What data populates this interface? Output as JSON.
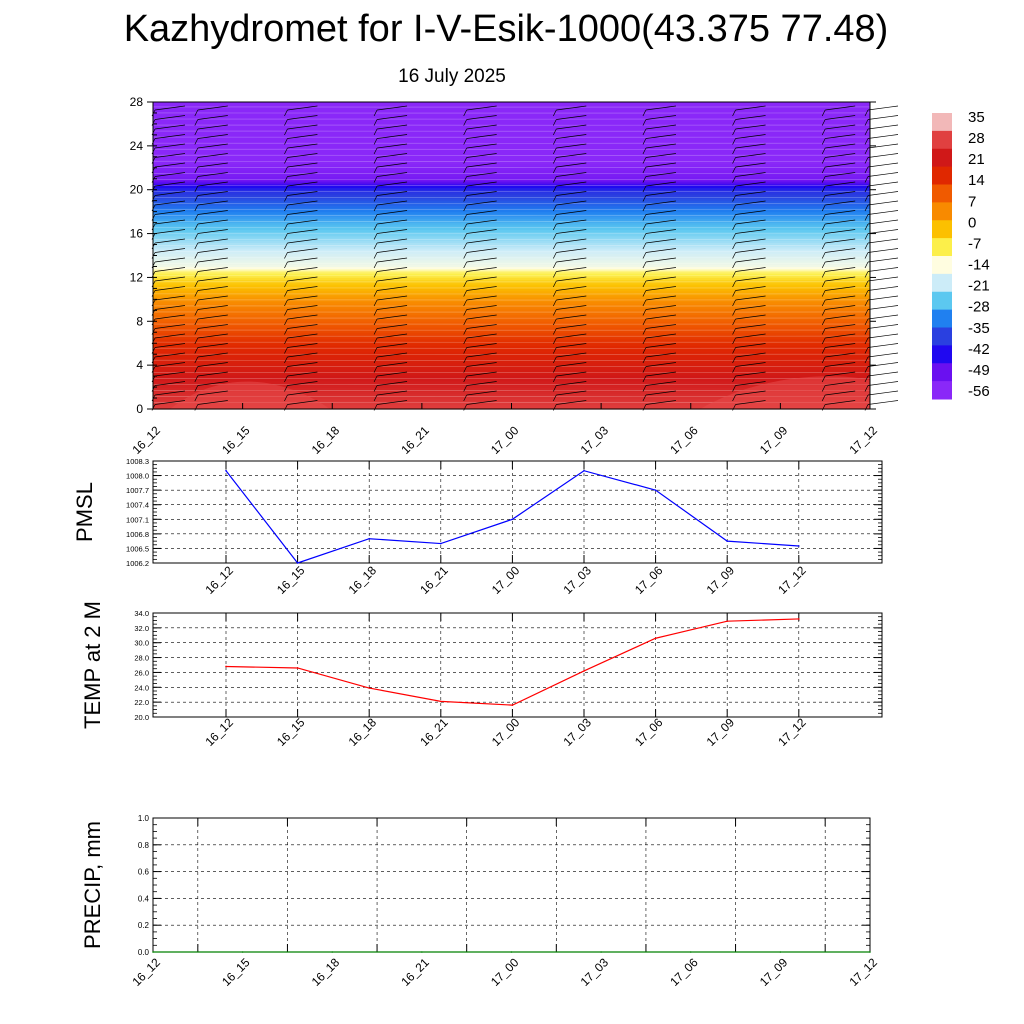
{
  "title": "Kazhydromet for I-V-Esik-1000(43.375 77.48)",
  "subtitle": "16 July 2025",
  "chart_data": [
    {
      "type": "heatmap",
      "description": "Time-height cross section (contour fill) with wind barbs",
      "x_ticks": [
        "16_12",
        "16_15",
        "16_18",
        "16_21",
        "17_00",
        "17_03",
        "17_06",
        "17_09",
        "17_12"
      ],
      "y_ticks": [
        0,
        4,
        8,
        12,
        16,
        20,
        24,
        28
      ],
      "ylim": [
        0,
        28
      ],
      "colorbar": {
        "labels": [
          "35",
          "28",
          "21",
          "14",
          "7",
          "0",
          "-7",
          "-14",
          "-21",
          "-28",
          "-35",
          "-42",
          "-49",
          "-56"
        ],
        "colors": [
          "#f2b8b8",
          "#e04040",
          "#d01818",
          "#e02800",
          "#f05a00",
          "#f88a00",
          "#fcc000",
          "#fcef4a",
          "#fffde0",
          "#ccecf8",
          "#5cc8f0",
          "#2080f0",
          "#2a40e0",
          "#2008f0",
          "#6a10f0",
          "#8a28f8"
        ]
      },
      "value_profile": [
        {
          "height": 0,
          "value": 35
        },
        {
          "height": 3,
          "value": 28
        },
        {
          "height": 6,
          "value": 21
        },
        {
          "height": 8,
          "value": 14
        },
        {
          "height": 10,
          "value": 7
        },
        {
          "height": 11.5,
          "value": 0
        },
        {
          "height": 12.5,
          "value": -7
        },
        {
          "height": 13,
          "value": -14
        },
        {
          "height": 15,
          "value": -21
        },
        {
          "height": 17,
          "value": -28
        },
        {
          "height": 18.5,
          "value": -35
        },
        {
          "height": 20,
          "value": -42
        },
        {
          "height": 21,
          "value": -56
        },
        {
          "height": 22.5,
          "value": -60
        },
        {
          "height": 28,
          "value": -60
        }
      ]
    },
    {
      "type": "line",
      "ylabel": "PMSL",
      "categories": [
        "16_12",
        "16_15",
        "16_18",
        "16_21",
        "17_00",
        "17_03",
        "17_06",
        "17_09",
        "17_12"
      ],
      "values": [
        1008.1,
        1006.2,
        1006.7,
        1006.6,
        1007.1,
        1008.1,
        1007.7,
        1006.65,
        1006.55
      ],
      "ylim": [
        1006.2,
        1008.3
      ],
      "y_ticks": [
        "1006.2",
        "1006.5",
        "1006.8",
        "1007.1",
        "1007.4",
        "1007.7",
        "1008.0",
        "1008.3"
      ],
      "color": "#0000ff"
    },
    {
      "type": "line",
      "ylabel": "TEMP at 2 M",
      "categories": [
        "16_12",
        "16_15",
        "16_18",
        "16_21",
        "17_00",
        "17_03",
        "17_06",
        "17_09",
        "17_12"
      ],
      "values": [
        26.8,
        26.6,
        23.9,
        22.1,
        21.6,
        26.2,
        30.6,
        32.9,
        33.2
      ],
      "ylim": [
        20,
        34
      ],
      "y_ticks": [
        "20.0",
        "22.0",
        "24.0",
        "26.0",
        "28.0",
        "30.0",
        "32.0",
        "34.0"
      ],
      "color": "#ff0000"
    },
    {
      "type": "line",
      "ylabel": "PRECIP, mm",
      "categories": [
        "16_12",
        "16_15",
        "16_18",
        "16_21",
        "17_00",
        "17_03",
        "17_06",
        "17_09",
        "17_12"
      ],
      "values": [
        0,
        0,
        0,
        0,
        0,
        0,
        0,
        0,
        0
      ],
      "ylim": [
        0,
        1
      ],
      "y_ticks": [
        "0.0",
        "0.2",
        "0.4",
        "0.6",
        "0.8",
        "1.0"
      ],
      "color": "#008000"
    }
  ]
}
